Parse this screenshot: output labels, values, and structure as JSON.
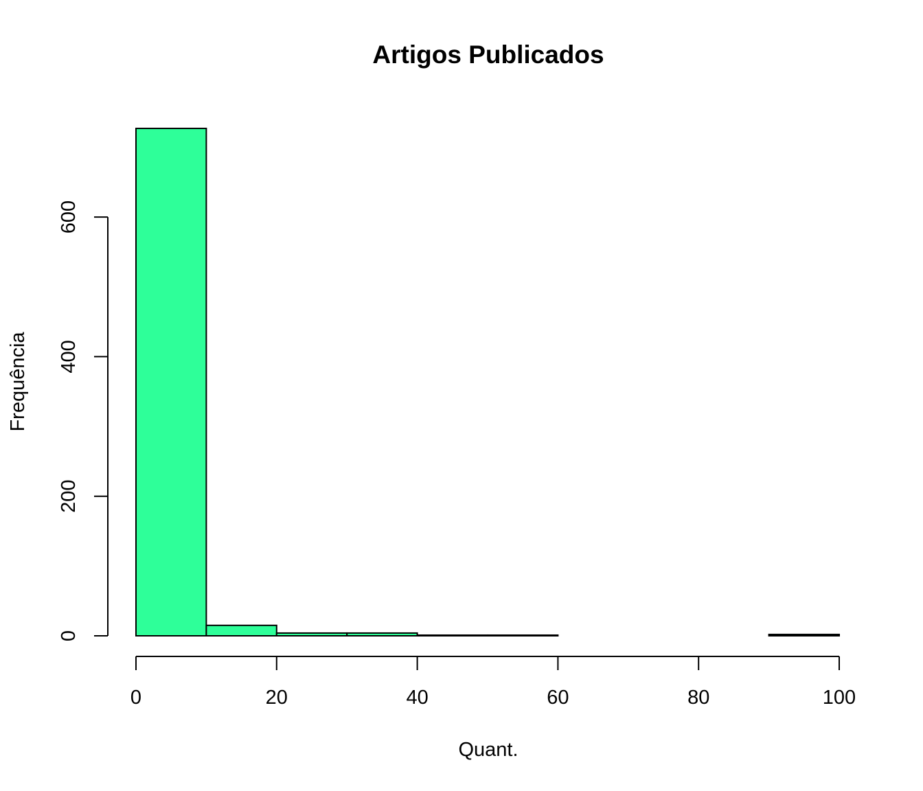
{
  "chart_data": {
    "type": "bar",
    "title": "Artigos Publicados",
    "xlabel": "Quant.",
    "ylabel": "Frequência",
    "bar_color": "#2EFF99",
    "bins": [
      {
        "x0": 0,
        "x1": 10,
        "count": 727
      },
      {
        "x0": 10,
        "x1": 20,
        "count": 15
      },
      {
        "x0": 20,
        "x1": 30,
        "count": 4
      },
      {
        "x0": 30,
        "x1": 40,
        "count": 4
      },
      {
        "x0": 40,
        "x1": 50,
        "count": 1
      },
      {
        "x0": 50,
        "x1": 60,
        "count": 1
      },
      {
        "x0": 60,
        "x1": 70,
        "count": 0
      },
      {
        "x0": 70,
        "x1": 80,
        "count": 0
      },
      {
        "x0": 80,
        "x1": 90,
        "count": 0
      },
      {
        "x0": 90,
        "x1": 100,
        "count": 2
      }
    ],
    "xlim": [
      0,
      100
    ],
    "ylim": [
      0,
      727
    ],
    "x_ticks": [
      0,
      20,
      40,
      60,
      80,
      100
    ],
    "y_ticks": [
      0,
      200,
      400,
      600
    ],
    "x_tick_labels": [
      "0",
      "20",
      "40",
      "60",
      "80",
      "100"
    ],
    "y_tick_labels": [
      "0",
      "200",
      "400",
      "600"
    ],
    "grid": false,
    "legend": "none"
  }
}
